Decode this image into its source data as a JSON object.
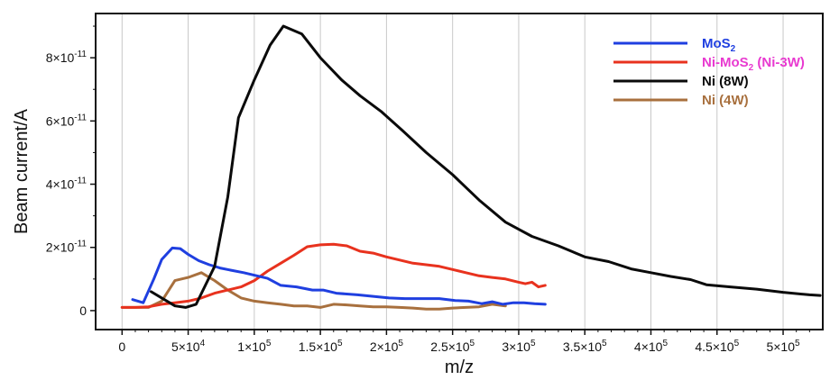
{
  "chart_data": {
    "type": "line",
    "xlabel": "m/z",
    "ylabel": "Beam current/A",
    "xlim": [
      -20000,
      530000
    ],
    "ylim": [
      -6e-12,
      9.4e-11
    ],
    "grid": "vertical",
    "legend_position": "top-right",
    "x_ticks": [
      {
        "value": 0,
        "base": "0",
        "exp": ""
      },
      {
        "value": 50000,
        "base": "5×10",
        "exp": "4"
      },
      {
        "value": 100000,
        "base": "1×10",
        "exp": "5"
      },
      {
        "value": 150000,
        "base": "1.5×10",
        "exp": "5"
      },
      {
        "value": 200000,
        "base": "2×10",
        "exp": "5"
      },
      {
        "value": 250000,
        "base": "2.5×10",
        "exp": "5"
      },
      {
        "value": 300000,
        "base": "3×10",
        "exp": "5"
      },
      {
        "value": 350000,
        "base": "3.5×10",
        "exp": "5"
      },
      {
        "value": 400000,
        "base": "4×10",
        "exp": "5"
      },
      {
        "value": 450000,
        "base": "4.5×10",
        "exp": "5"
      },
      {
        "value": 500000,
        "base": "5×10",
        "exp": "5"
      }
    ],
    "y_ticks": [
      {
        "value": 0,
        "base": "0",
        "exp": ""
      },
      {
        "value": 2e-11,
        "base": "2×10",
        "exp": "-11"
      },
      {
        "value": 4e-11,
        "base": "4×10",
        "exp": "-11"
      },
      {
        "value": 6e-11,
        "base": "6×10",
        "exp": "-11"
      },
      {
        "value": 8e-11,
        "base": "8×10",
        "exp": "-11"
      }
    ],
    "series": [
      {
        "name": "MoS",
        "name_sub": "2",
        "name_rest": "",
        "color": "#1f3fe0",
        "label_color": "#1f3fe0",
        "x": [
          8000,
          16000,
          24000,
          30000,
          38000,
          44000,
          50000,
          58000,
          66000,
          74000,
          82000,
          92000,
          102000,
          110000,
          120000,
          132000,
          144000,
          152000,
          162000,
          178000,
          190000,
          202000,
          214000,
          226000,
          240000,
          252000,
          262000,
          272000,
          280000,
          288000,
          296000,
          304000,
          312000,
          320000
        ],
        "y": [
          3.5e-12,
          2.5e-12,
          1e-11,
          1.62e-11,
          1.98e-11,
          1.96e-11,
          1.78e-11,
          1.58e-11,
          1.45e-11,
          1.35e-11,
          1.28e-11,
          1.2e-11,
          1.1e-11,
          1.02e-11,
          8e-12,
          7.5e-12,
          6.5e-12,
          6.5e-12,
          5.5e-12,
          5e-12,
          4.5e-12,
          4e-12,
          3.8e-12,
          3.8e-12,
          3.8e-12,
          3.2e-12,
          3e-12,
          2.2e-12,
          2.8e-12,
          2e-12,
          2.5e-12,
          2.5e-12,
          2.2e-12,
          2e-12
        ]
      },
      {
        "name": "Ni-MoS",
        "name_sub": "2",
        "name_rest": " (Ni-3W)",
        "color": "#e8321e",
        "label_color": "#e83ad0",
        "x": [
          0,
          10000,
          20000,
          30000,
          40000,
          50000,
          60000,
          70000,
          80000,
          90000,
          100000,
          110000,
          120000,
          130000,
          140000,
          150000,
          160000,
          170000,
          180000,
          190000,
          200000,
          210000,
          220000,
          230000,
          240000,
          250000,
          260000,
          270000,
          280000,
          290000,
          300000,
          305000,
          310000,
          315000,
          320000
        ],
        "y": [
          1e-12,
          1e-12,
          1.2e-12,
          2e-12,
          2.5e-12,
          3e-12,
          4e-12,
          5.5e-12,
          6.5e-12,
          7.5e-12,
          9.5e-12,
          1.25e-11,
          1.5e-11,
          1.75e-11,
          2.02e-11,
          2.08e-11,
          2.1e-11,
          2.05e-11,
          1.88e-11,
          1.82e-11,
          1.7e-11,
          1.6e-11,
          1.5e-11,
          1.45e-11,
          1.4e-11,
          1.3e-11,
          1.2e-11,
          1.1e-11,
          1.05e-11,
          1e-11,
          9e-12,
          8.5e-12,
          9e-12,
          7.5e-12,
          8e-12
        ]
      },
      {
        "name": "Ni (8W)",
        "name_sub": "",
        "name_rest": "",
        "color": "#0a0a0a",
        "label_color": "#0a0a0a",
        "x": [
          22000,
          32000,
          40000,
          48000,
          56000,
          70000,
          80000,
          88000,
          100000,
          112000,
          122000,
          136000,
          150000,
          166000,
          180000,
          196000,
          212000,
          230000,
          250000,
          270000,
          290000,
          310000,
          330000,
          350000,
          368000,
          385000,
          400000,
          415000,
          430000,
          442000,
          460000,
          480000,
          500000,
          520000,
          528000
        ],
        "y": [
          6e-12,
          3.5e-12,
          1.5e-12,
          1e-12,
          2e-12,
          1.4e-11,
          3.6e-11,
          6.1e-11,
          7.3e-11,
          8.4e-11,
          9e-11,
          8.75e-11,
          8e-11,
          7.3e-11,
          6.8e-11,
          6.3e-11,
          5.7e-11,
          5e-11,
          4.3e-11,
          3.5e-11,
          2.8e-11,
          2.35e-11,
          2.05e-11,
          1.7e-11,
          1.55e-11,
          1.32e-11,
          1.2e-11,
          1.08e-11,
          9.8e-12,
          8.2e-12,
          7.5e-12,
          6.8e-12,
          5.8e-12,
          5e-12,
          4.8e-12
        ]
      },
      {
        "name": "Ni (4W)",
        "name_sub": "",
        "name_rest": "",
        "color": "#a8703e",
        "label_color": "#a8703e",
        "x": [
          0,
          10000,
          20000,
          30000,
          40000,
          50000,
          60000,
          70000,
          80000,
          90000,
          100000,
          110000,
          120000,
          130000,
          140000,
          150000,
          160000,
          170000,
          180000,
          190000,
          200000,
          210000,
          220000,
          230000,
          240000,
          250000,
          260000,
          270000,
          280000,
          290000
        ],
        "y": [
          1e-12,
          1e-12,
          1e-12,
          3e-12,
          9.5e-12,
          1.05e-11,
          1.2e-11,
          9.5e-12,
          6.5e-12,
          4e-12,
          3e-12,
          2.5e-12,
          2e-12,
          1.5e-12,
          1.5e-12,
          1e-12,
          2e-12,
          1.8e-12,
          1.5e-12,
          1.2e-12,
          1.2e-12,
          1e-12,
          8e-13,
          5e-13,
          5e-13,
          8e-13,
          1e-12,
          1.2e-12,
          2e-12,
          1.5e-12
        ]
      }
    ]
  }
}
